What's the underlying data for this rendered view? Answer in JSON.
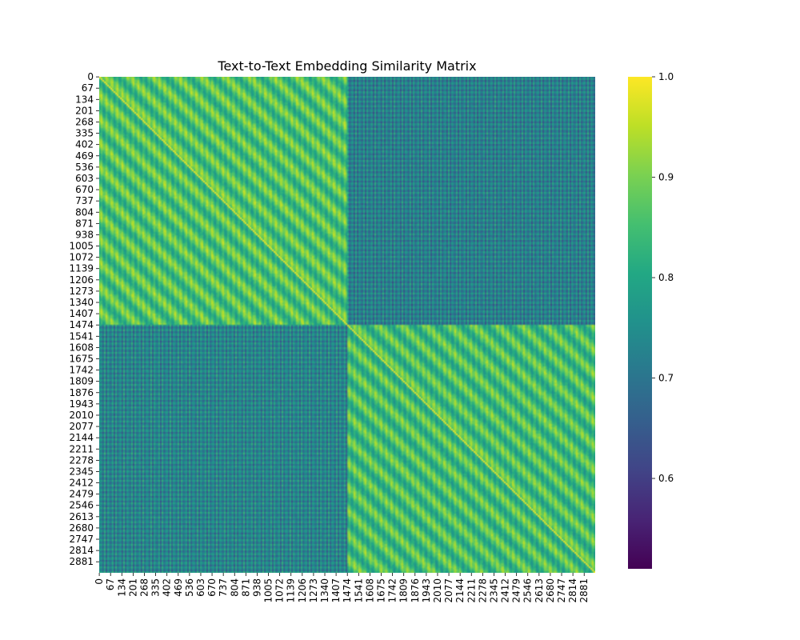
{
  "chart_data": {
    "type": "heatmap",
    "title": "Text-to-Text Embedding Similarity Matrix",
    "xlabel": "",
    "ylabel": "",
    "n": 2947,
    "tick_labels": [
      "0",
      "67",
      "134",
      "201",
      "268",
      "335",
      "402",
      "469",
      "536",
      "603",
      "670",
      "737",
      "804",
      "871",
      "938",
      "1005",
      "1072",
      "1139",
      "1206",
      "1273",
      "1340",
      "1407",
      "1474",
      "1541",
      "1608",
      "1675",
      "1742",
      "1809",
      "1876",
      "1943",
      "2010",
      "2077",
      "2144",
      "2211",
      "2278",
      "2345",
      "2412",
      "2479",
      "2546",
      "2613",
      "2680",
      "2747",
      "2814",
      "2881"
    ],
    "blocks": [
      {
        "rows": [
          0,
          1474
        ],
        "cols": [
          0,
          1474
        ],
        "mean_similarity": 0.86
      },
      {
        "rows": [
          0,
          1474
        ],
        "cols": [
          1474,
          2947
        ],
        "mean_similarity": 0.72
      },
      {
        "rows": [
          1474,
          2947
        ],
        "cols": [
          0,
          1474
        ],
        "mean_similarity": 0.73
      },
      {
        "rows": [
          1474,
          2947
        ],
        "cols": [
          1474,
          2947
        ],
        "mean_similarity": 0.85
      }
    ],
    "vmin": 0.51,
    "vmax": 1.0,
    "colormap": "viridis",
    "colorbar": {
      "ticks": [
        "0.6",
        "0.7",
        "0.8",
        "0.9",
        "1.0"
      ]
    },
    "grid": false
  }
}
